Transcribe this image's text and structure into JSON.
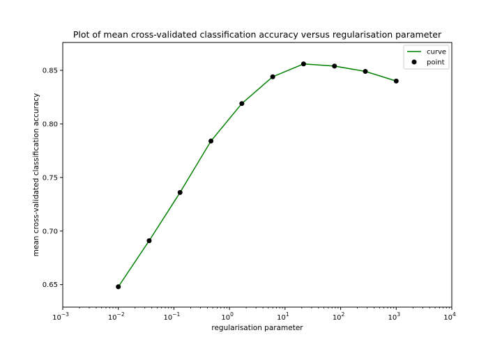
{
  "chart_data": {
    "type": "line",
    "title": "Plot of mean cross-validated classification accuracy versus regularisation parameter",
    "xlabel": "regularisation parameter",
    "ylabel": "mean cross-validated classification accuracy",
    "xscale": "log",
    "xlim": [
      0.001,
      10000
    ],
    "ylim": [
      0.629,
      0.876
    ],
    "x_ticks": [
      {
        "value": 0.001,
        "base": "10",
        "exp": "−3"
      },
      {
        "value": 0.01,
        "base": "10",
        "exp": "−2"
      },
      {
        "value": 0.1,
        "base": "10",
        "exp": "−1"
      },
      {
        "value": 1,
        "base": "10",
        "exp": "0"
      },
      {
        "value": 10,
        "base": "10",
        "exp": "1"
      },
      {
        "value": 100,
        "base": "10",
        "exp": "2"
      },
      {
        "value": 1000,
        "base": "10",
        "exp": "3"
      },
      {
        "value": 10000,
        "base": "10",
        "exp": "4"
      }
    ],
    "y_ticks": [
      0.65,
      0.7,
      0.75,
      0.8,
      0.85
    ],
    "y_tick_labels": [
      "0.65",
      "0.70",
      "0.75",
      "0.80",
      "0.85"
    ],
    "series": [
      {
        "name": "curve",
        "kind": "line",
        "color": "#008000",
        "x": [
          0.01,
          0.0359,
          0.129,
          0.464,
          1.668,
          5.995,
          21.54,
          77.43,
          278.3,
          1000
        ],
        "y": [
          0.648,
          0.691,
          0.736,
          0.784,
          0.819,
          0.844,
          0.856,
          0.854,
          0.849,
          0.84
        ]
      },
      {
        "name": "point",
        "kind": "scatter",
        "color": "#000000",
        "x": [
          0.01,
          0.0359,
          0.129,
          0.464,
          1.668,
          5.995,
          21.54,
          77.43,
          278.3,
          1000
        ],
        "y": [
          0.648,
          0.691,
          0.736,
          0.784,
          0.819,
          0.844,
          0.856,
          0.854,
          0.849,
          0.84
        ]
      }
    ],
    "legend": {
      "position": "top-right",
      "entries": [
        {
          "label": "curve",
          "symbol": "line",
          "color": "#008000"
        },
        {
          "label": "point",
          "symbol": "dot",
          "color": "#000000"
        }
      ]
    }
  }
}
